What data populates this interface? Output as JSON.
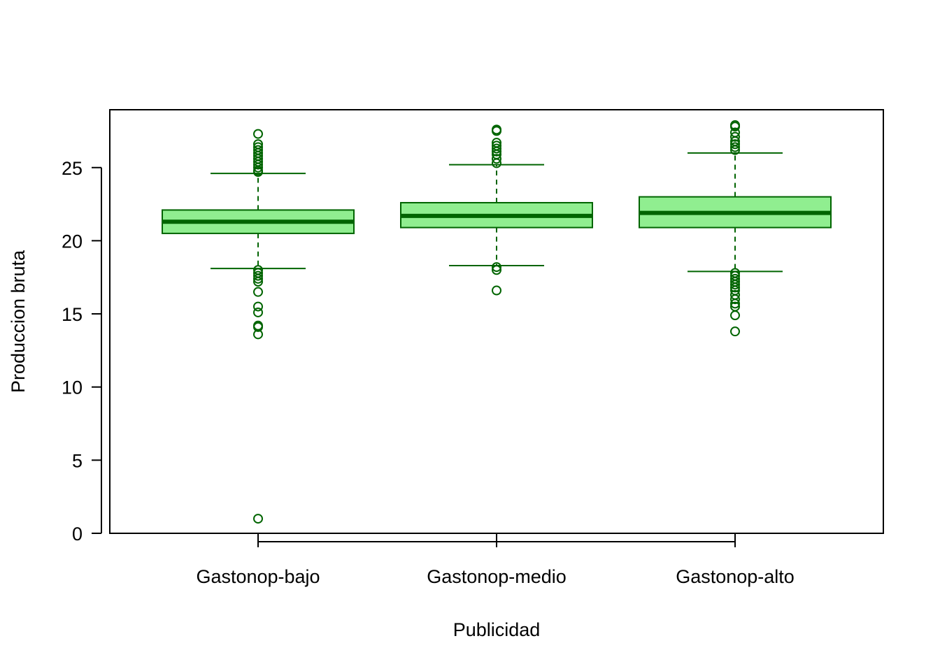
{
  "chart_data": {
    "type": "boxplot",
    "title": "",
    "xlabel": "Publicidad",
    "ylabel": "Produccion bruta",
    "ylim": [
      0,
      28
    ],
    "yticks": [
      0,
      5,
      10,
      15,
      20,
      25
    ],
    "grid": false,
    "legend": "none",
    "colors": {
      "box_fill": "#90EE90",
      "stroke": "#006400"
    },
    "categories": [
      "Gastonop-bajo",
      "Gastonop-medio",
      "Gastonop-alto"
    ],
    "boxes": [
      {
        "name": "Gastonop-bajo",
        "whisker_low": 18.1,
        "q1": 20.5,
        "median": 21.3,
        "q3": 22.1,
        "whisker_high": 24.6,
        "outliers": [
          27.3,
          26.6,
          26.4,
          26.2,
          26.0,
          25.8,
          25.6,
          25.4,
          25.2,
          25.0,
          24.8,
          24.7,
          18.0,
          17.8,
          17.6,
          17.4,
          17.2,
          16.5,
          15.5,
          15.1,
          14.2,
          14.1,
          13.6,
          1.0
        ]
      },
      {
        "name": "Gastonop-medio",
        "whisker_low": 18.3,
        "q1": 20.9,
        "median": 21.7,
        "q3": 22.6,
        "whisker_high": 25.2,
        "outliers": [
          27.6,
          27.5,
          26.7,
          26.5,
          26.3,
          26.1,
          25.9,
          25.6,
          25.3,
          18.2,
          18.0,
          16.6
        ]
      },
      {
        "name": "Gastonop-alto",
        "whisker_low": 17.9,
        "q1": 20.9,
        "median": 21.9,
        "q3": 23.0,
        "whisker_high": 26.0,
        "outliers": [
          27.9,
          27.8,
          27.4,
          27.1,
          26.8,
          26.6,
          26.4,
          26.2,
          17.8,
          17.6,
          17.4,
          17.2,
          17.0,
          16.8,
          16.6,
          16.3,
          16.0,
          15.7,
          15.5,
          14.9,
          13.8
        ]
      }
    ]
  }
}
